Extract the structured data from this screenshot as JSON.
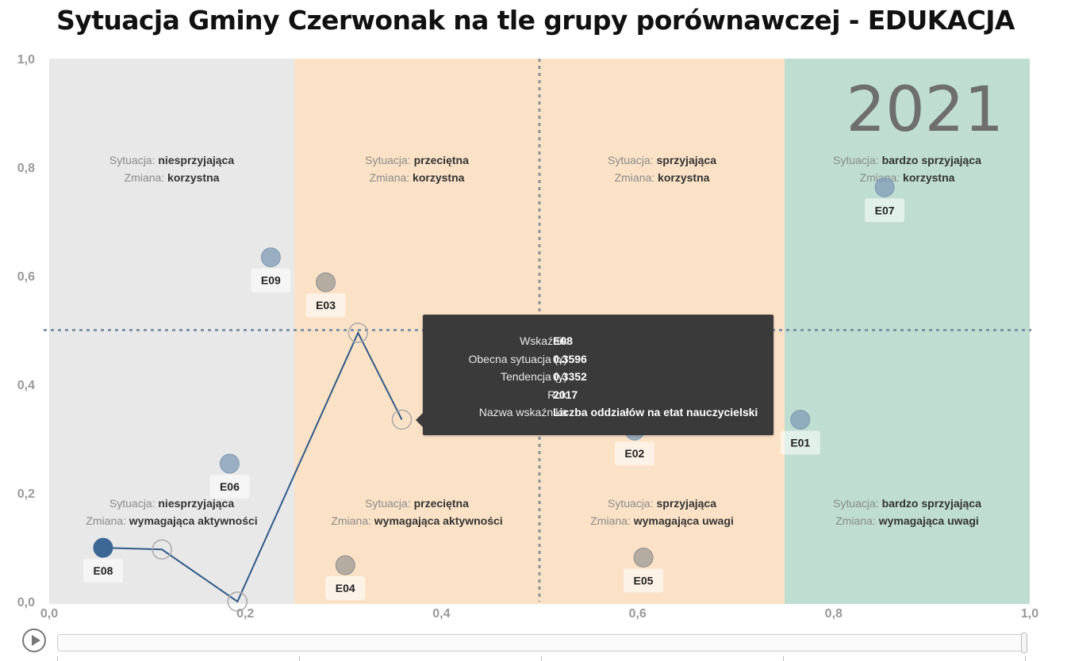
{
  "title": "Sytuacja Gminy Czerwonak na tle grupy porównawczej - EDUKACJA",
  "year": "2021",
  "colors": {
    "zone_unfavorable": "#e8e8e8",
    "zone_average": "#fbe2c7",
    "zone_favorable": "#fbe2c7",
    "zone_very_favorable": "#bfddd0",
    "point_blue": "#7f9bb6",
    "point_gray": "#8e8e8e",
    "point_selected": "#3c6794",
    "trail": "#2f5a88"
  },
  "zones": {
    "top": [
      {
        "l1": "Sytuacja: ",
        "v1": "niesprzyjająca",
        "l2": "Zmiana: ",
        "v2": "korzystna"
      },
      {
        "l1": "Sytuacja: ",
        "v1": "przeciętna",
        "l2": "Zmiana: ",
        "v2": "korzystna"
      },
      {
        "l1": "Sytuacja: ",
        "v1": "sprzyjająca",
        "l2": "Zmiana: ",
        "v2": "korzystna"
      },
      {
        "l1": "Sytuacja: ",
        "v1": "bardzo sprzyjająca",
        "l2": "Zmiana: ",
        "v2": "korzystna"
      }
    ],
    "bottom": [
      {
        "l1": "Sytuacja: ",
        "v1": "niesprzyjająca",
        "l2": "Zmiana: ",
        "v2": "wymagająca aktywności"
      },
      {
        "l1": "Sytuacja: ",
        "v1": "przeciętna",
        "l2": "Zmiana: ",
        "v2": "wymagająca aktywności"
      },
      {
        "l1": "Sytuacja: ",
        "v1": "sprzyjająca",
        "l2": "Zmiana: ",
        "v2": "wymagająca uwagi"
      },
      {
        "l1": "Sytuacja: ",
        "v1": "bardzo sprzyjająca",
        "l2": "Zmiana: ",
        "v2": "wymagająca uwagi"
      }
    ]
  },
  "chart_data": {
    "type": "scatter",
    "xlim": [
      0,
      1
    ],
    "ylim": [
      0,
      1
    ],
    "x_ticks": [
      "0,0",
      "0,2",
      "0,4",
      "0,6",
      "0,8",
      "1,0"
    ],
    "y_ticks": [
      "0,0",
      "0,2",
      "0,4",
      "0,6",
      "0,8",
      "1,0"
    ],
    "zone_bounds_x": [
      0.25,
      0.5,
      0.75
    ],
    "ref_line_x": 0.5,
    "ref_line_y": 0.5,
    "points": [
      {
        "label": "E01",
        "x": 0.766,
        "y": 0.335,
        "color": "blue"
      },
      {
        "label": "E02",
        "x": 0.597,
        "y": 0.315,
        "color": "blue"
      },
      {
        "label": "E03",
        "x": 0.282,
        "y": 0.588,
        "color": "gray"
      },
      {
        "label": "E04",
        "x": 0.302,
        "y": 0.067,
        "color": "gray"
      },
      {
        "label": "E05",
        "x": 0.606,
        "y": 0.081,
        "color": "gray"
      },
      {
        "label": "E06",
        "x": 0.184,
        "y": 0.254,
        "color": "blue"
      },
      {
        "label": "E07",
        "x": 0.852,
        "y": 0.763,
        "color": "blue"
      },
      {
        "label": "E08",
        "x": 0.055,
        "y": 0.099,
        "color": "selected"
      },
      {
        "label": "E09",
        "x": 0.226,
        "y": 0.634,
        "color": "blue"
      }
    ],
    "trail": [
      {
        "x": 0.055,
        "y": 0.099
      },
      {
        "x": 0.115,
        "y": 0.096
      },
      {
        "x": 0.192,
        "y": 0.0
      },
      {
        "x": 0.315,
        "y": 0.495
      },
      {
        "x": 0.3596,
        "y": 0.3352
      }
    ]
  },
  "tooltip": {
    "rows": [
      {
        "key": "Wskaźnik",
        "value": "E08"
      },
      {
        "key": "Obecna sytuacja (x)",
        "value": "0,3596"
      },
      {
        "key": "Tendencja (y)",
        "value": "0,3352"
      },
      {
        "key": "Rok",
        "value": "2017"
      },
      {
        "key": "Nazwa wskaźnika",
        "value": "Liczba oddziałów na etat nauczycielski"
      }
    ]
  },
  "player": {
    "play_icon": "play-icon"
  }
}
